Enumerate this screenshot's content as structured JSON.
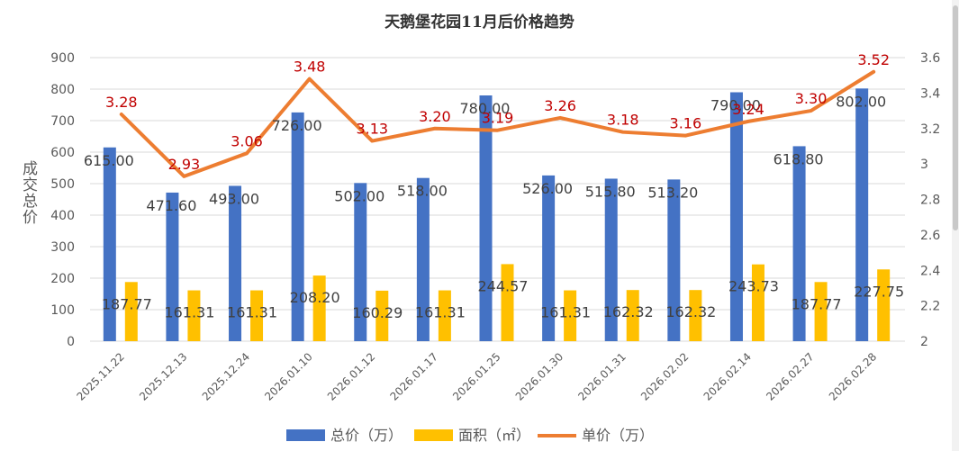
{
  "chart_data": {
    "type": "bar",
    "title": "天鹅堡花园11月后价格趋势",
    "ylabel": "成交总价",
    "y2label": "",
    "categories": [
      "2025.11.22",
      "2025.12.13",
      "2025.12.24",
      "2026.01.10",
      "2026.01.12",
      "2026.01.17",
      "2026.01.25",
      "2026.01.30",
      "2026.01.31",
      "2026.02.02",
      "2026.02.14",
      "2026.02.27",
      "2026.02.28"
    ],
    "ylim": [
      0,
      900
    ],
    "y2lim": [
      2,
      3.6
    ],
    "yticks": [
      "0",
      "100",
      "200",
      "300",
      "400",
      "500",
      "600",
      "700",
      "800",
      "900"
    ],
    "y2ticks": [
      "2",
      "2.2",
      "2.4",
      "2.6",
      "2.8",
      "3",
      "3.2",
      "3.4",
      "3.6"
    ],
    "grid": true,
    "legend_position": "bottom",
    "series": [
      {
        "name": "总价（万）",
        "kind": "bar",
        "axis": "left",
        "color": "#4472C4",
        "values": [
          615.0,
          471.6,
          493.0,
          726.0,
          502.0,
          518.0,
          780.0,
          526.0,
          515.8,
          513.2,
          790.0,
          618.8,
          802.0
        ],
        "labels": [
          "615.00",
          "471.60",
          "493.00",
          "726.00",
          "502.00",
          "518.00",
          "780.00",
          "526.00",
          "515.80",
          "513.20",
          "790.00",
          "618.80",
          "802.00"
        ]
      },
      {
        "name": "面积（㎡）",
        "kind": "bar",
        "axis": "left",
        "color": "#FFC000",
        "values": [
          187.77,
          161.31,
          161.31,
          208.2,
          160.29,
          161.31,
          244.57,
          161.31,
          162.32,
          162.32,
          243.73,
          187.77,
          227.75
        ],
        "labels": [
          "187.77",
          "161.31",
          "161.31",
          "208.20",
          "160.29",
          "161.31",
          "244.57",
          "161.31",
          "162.32",
          "162.32",
          "243.73",
          "187.77",
          "227.75"
        ]
      },
      {
        "name": "单价（万）",
        "kind": "line",
        "axis": "right",
        "color": "#ED7D31",
        "label_color": "#C00000",
        "values": [
          3.28,
          2.93,
          3.06,
          3.48,
          3.13,
          3.2,
          3.19,
          3.26,
          3.18,
          3.16,
          3.24,
          3.3,
          3.52
        ],
        "labels": [
          "3.28",
          "2.93",
          "3.06",
          "3.48",
          "3.13",
          "3.20",
          "3.19",
          "3.26",
          "3.18",
          "3.16",
          "3.24",
          "3.30",
          "3.52"
        ]
      }
    ]
  }
}
